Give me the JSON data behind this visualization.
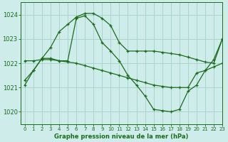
{
  "title": "Graphe pression niveau de la mer (hPa)",
  "bg_color": "#ceecea",
  "grid_color": "#aad4cc",
  "line_color": "#1a6b1a",
  "ylim": [
    1019.5,
    1024.5
  ],
  "xlim": [
    -0.5,
    23
  ],
  "yticks": [
    1020,
    1021,
    1022,
    1023,
    1024
  ],
  "xticks": [
    0,
    1,
    2,
    3,
    4,
    5,
    6,
    7,
    8,
    9,
    10,
    11,
    12,
    13,
    14,
    15,
    16,
    17,
    18,
    19,
    20,
    21,
    22,
    23
  ],
  "line1_x": [
    0,
    1,
    2,
    3,
    4,
    5,
    6,
    7,
    8,
    9,
    10,
    11,
    12,
    13,
    14,
    15,
    16,
    17,
    18,
    19,
    20,
    21,
    22,
    23
  ],
  "line1_y": [
    1021.3,
    1021.7,
    1022.2,
    1022.65,
    1023.3,
    1023.6,
    1023.9,
    1024.05,
    1024.05,
    1023.85,
    1023.55,
    1022.85,
    1022.5,
    1022.5,
    1022.5,
    1022.5,
    1022.45,
    1022.4,
    1022.35,
    1022.25,
    1022.15,
    1022.05,
    1022.0,
    1023.0
  ],
  "line2_x": [
    0,
    1,
    2,
    3,
    4,
    5,
    6,
    7,
    8,
    9,
    10,
    11,
    12,
    13,
    14,
    15,
    16,
    17,
    18,
    19,
    20,
    21,
    22,
    23
  ],
  "line2_y": [
    1021.1,
    1021.7,
    1022.2,
    1022.2,
    1022.1,
    1022.1,
    1023.85,
    1023.95,
    1023.6,
    1022.85,
    1022.5,
    1022.1,
    1021.5,
    1021.1,
    1020.65,
    1020.1,
    1020.05,
    1020.0,
    1020.1,
    1020.85,
    1021.1,
    1021.7,
    1022.15,
    1023.0
  ],
  "line3_x": [
    0,
    1,
    2,
    3,
    4,
    5,
    6,
    7,
    8,
    9,
    10,
    11,
    12,
    13,
    14,
    15,
    16,
    17,
    18,
    19,
    20,
    21,
    22,
    23
  ],
  "line3_y": [
    1022.1,
    1022.1,
    1022.15,
    1022.15,
    1022.1,
    1022.05,
    1022.0,
    1021.9,
    1021.8,
    1021.7,
    1021.6,
    1021.5,
    1021.4,
    1021.3,
    1021.2,
    1021.1,
    1021.05,
    1021.0,
    1021.0,
    1021.0,
    1021.6,
    1021.7,
    1021.85,
    1022.0
  ]
}
